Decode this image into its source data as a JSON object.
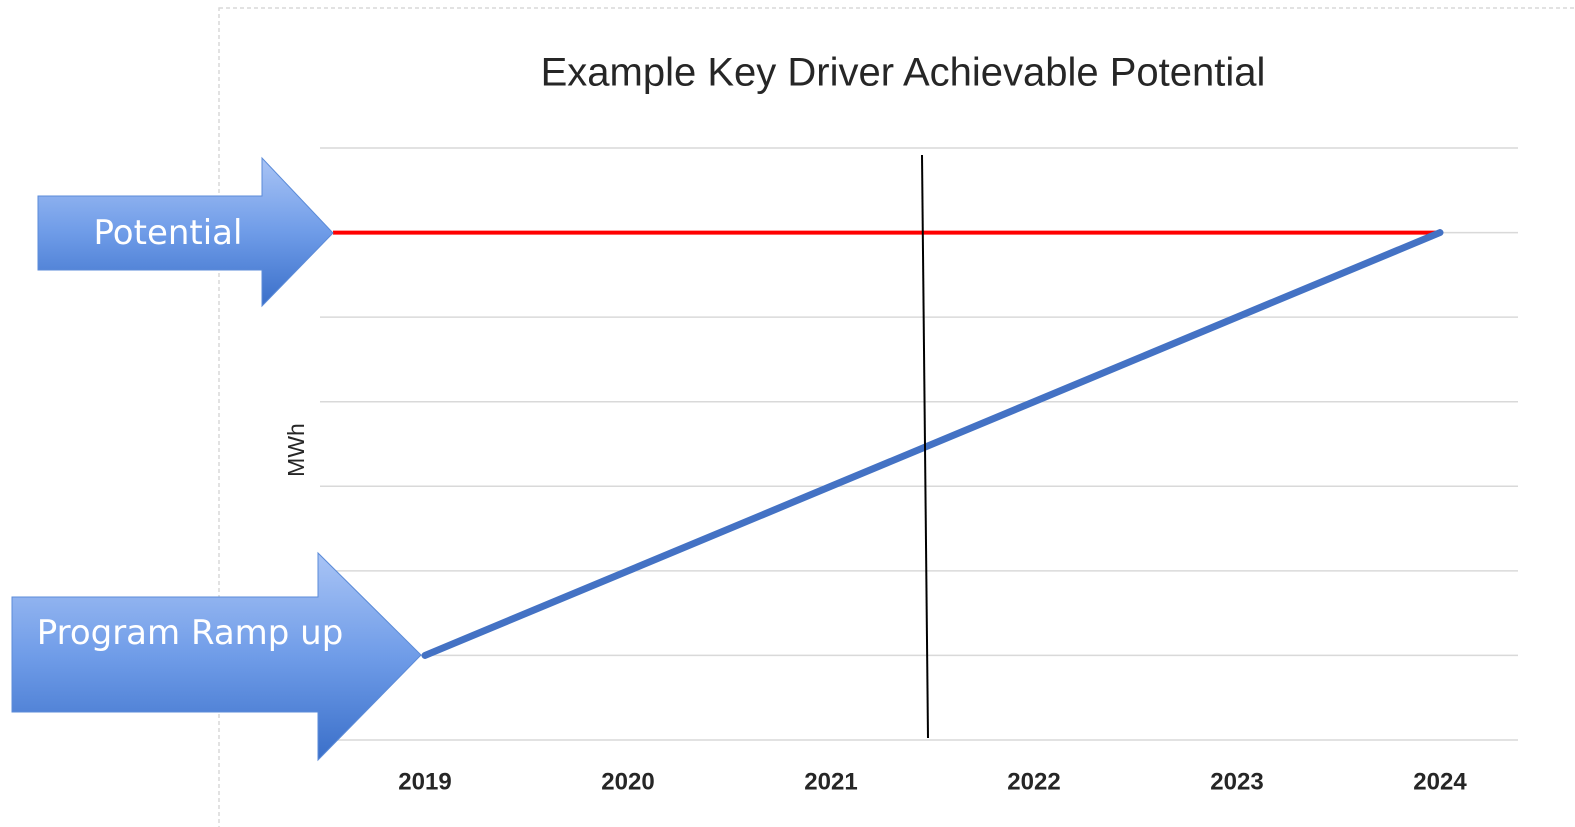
{
  "chart_data": {
    "type": "line",
    "title": "Example Key Driver Achievable Potential",
    "y_label": "MWh",
    "categories": [
      "2019",
      "2020",
      "2021",
      "2022",
      "2023",
      "2024"
    ],
    "series": [
      {
        "name": "Achievable Potential",
        "color": "#4472c4",
        "values": [
          1,
          2,
          3,
          4,
          5,
          6
        ]
      }
    ],
    "reference_line": {
      "value": 6,
      "color": "#ff0000"
    },
    "annotations": [
      "Potential",
      "Program Ramp up"
    ],
    "ylim": [
      0,
      7
    ],
    "yticks": [
      0,
      1,
      2,
      3,
      4,
      5,
      6,
      7
    ],
    "show_ytick_labels": false,
    "grid": true,
    "legend": false
  }
}
